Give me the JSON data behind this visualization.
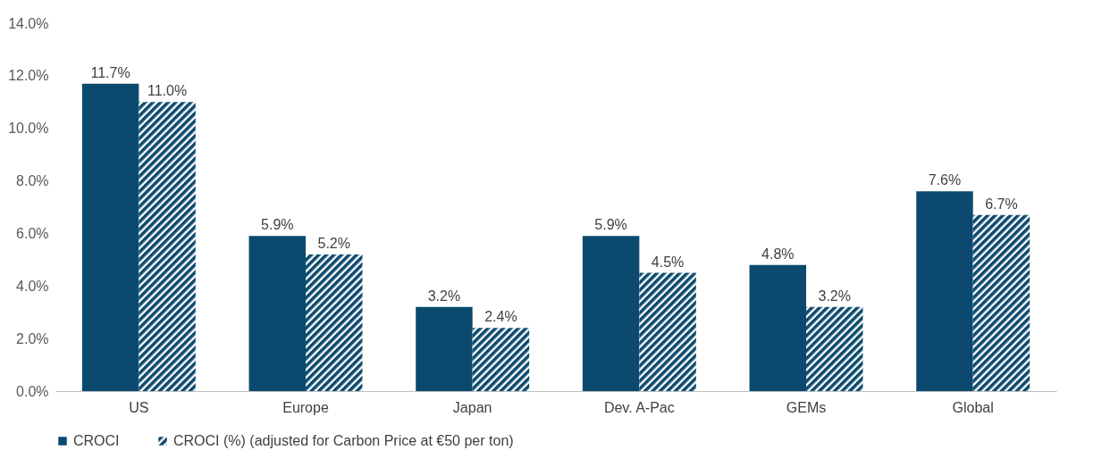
{
  "chart_data": {
    "type": "bar",
    "categories": [
      "US",
      "Europe",
      "Japan",
      "Dev. A-Pac",
      "GEMs",
      "Global"
    ],
    "series": [
      {
        "name": "CROCI",
        "color": "#0b4a6e",
        "values": [
          11.7,
          5.9,
          3.2,
          5.9,
          4.8,
          7.6
        ],
        "value_labels": [
          "11.7%",
          "5.9%",
          "3.2%",
          "5.9%",
          "4.8%",
          "7.6%"
        ]
      },
      {
        "name": "CROCI (%) (adjusted for Carbon Price at €50 per ton)",
        "color": "#0b4a6e",
        "values": [
          11.0,
          5.2,
          2.4,
          4.5,
          3.2,
          6.7
        ],
        "value_labels": [
          "11.0%",
          "5.2%",
          "2.4%",
          "4.5%",
          "3.2%",
          "6.7%"
        ]
      }
    ],
    "ylim": [
      0,
      14
    ],
    "yticks": [
      {
        "value": 0,
        "label": "0.0%"
      },
      {
        "value": 2,
        "label": "2.0%"
      },
      {
        "value": 4,
        "label": "4.0%"
      },
      {
        "value": 6,
        "label": "6.0%"
      },
      {
        "value": 8,
        "label": "8.0%"
      },
      {
        "value": 10,
        "label": "10.0%"
      },
      {
        "value": 12,
        "label": "12.0%"
      },
      {
        "value": 14,
        "label": "14.0%"
      }
    ],
    "grid": false,
    "legend": "bottom"
  }
}
